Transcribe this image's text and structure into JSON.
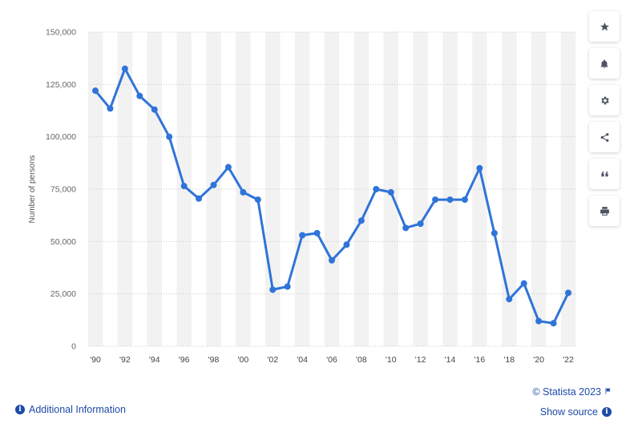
{
  "chart_data": {
    "type": "line",
    "ylabel": "Number of persons",
    "ylim": [
      0,
      150000
    ],
    "yticks": [
      0,
      25000,
      50000,
      75000,
      100000,
      125000,
      150000
    ],
    "ytick_labels": [
      "0",
      "25,000",
      "50,000",
      "75,000",
      "100,000",
      "125,000",
      "150,000"
    ],
    "x": [
      1990,
      1991,
      1992,
      1993,
      1994,
      1995,
      1996,
      1997,
      1998,
      1999,
      2000,
      2001,
      2002,
      2003,
      2004,
      2005,
      2006,
      2007,
      2008,
      2009,
      2010,
      2011,
      2012,
      2013,
      2014,
      2015,
      2016,
      2017,
      2018,
      2019,
      2020,
      2021,
      2022
    ],
    "xtick_labels": [
      "'90",
      "'92",
      "'94",
      "'96",
      "'98",
      "'00",
      "'02",
      "'04",
      "'06",
      "'08",
      "'10",
      "'12",
      "'14",
      "'16",
      "'18",
      "'20",
      "'22"
    ],
    "series": [
      {
        "values": [
          122000,
          113500,
          132500,
          119500,
          113000,
          100000,
          76500,
          70500,
          77000,
          85500,
          73500,
          70000,
          27000,
          28500,
          53000,
          54000,
          41000,
          48500,
          60000,
          75000,
          73500,
          56500,
          58500,
          70000,
          70000,
          70000,
          85000,
          54000,
          22500,
          30000,
          12000,
          11000,
          25500
        ],
        "color": "#2f74d8"
      }
    ],
    "grid": true,
    "legend": "none"
  },
  "toolbar": {
    "items": [
      {
        "name": "favorite",
        "icon": "star-icon",
        "glyph": "★"
      },
      {
        "name": "notification",
        "icon": "bell-icon",
        "glyph": "🔔"
      },
      {
        "name": "settings",
        "icon": "gear-icon",
        "glyph": "⚙"
      },
      {
        "name": "share",
        "icon": "share-icon",
        "glyph": "share"
      },
      {
        "name": "cite",
        "icon": "quote-icon",
        "glyph": "❝"
      },
      {
        "name": "print",
        "icon": "print-icon",
        "glyph": "print"
      }
    ]
  },
  "footer": {
    "additional_info": "Additional Information",
    "copyright": "© Statista 2023",
    "show_source": "Show source"
  },
  "colors": {
    "line": "#2f74d8",
    "band": "#f2f2f2",
    "link": "#1e4aa8"
  }
}
